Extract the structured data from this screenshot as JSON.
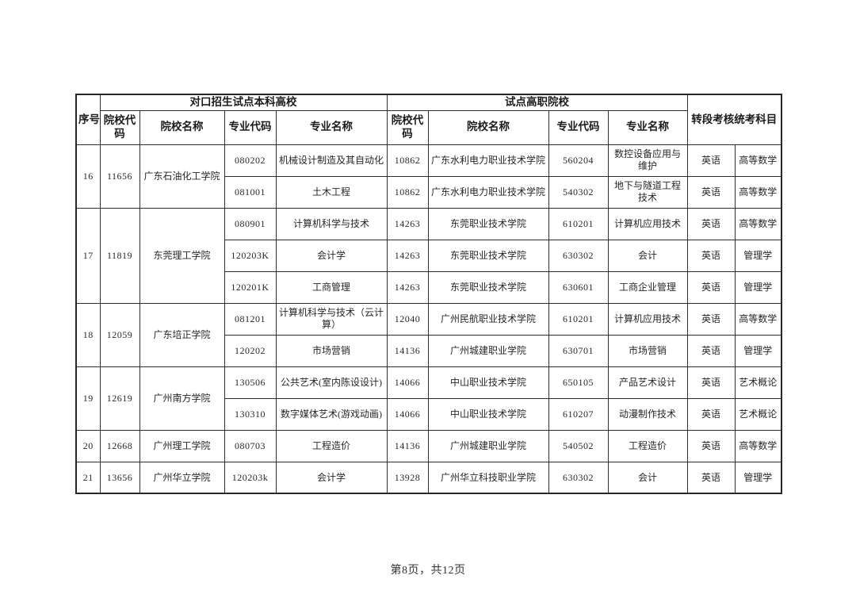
{
  "page": {
    "footer": "第8页，共12页"
  },
  "table": {
    "headers": {
      "seq": "序号",
      "bachelor_group": "对口招生试点本科高校",
      "vocational_group": "试点高职院校",
      "exam_group": "转段考核统考科目",
      "college_code": "院校代码",
      "college_name": "院校名称",
      "major_code": "专业代码",
      "major_name": "专业名称",
      "hz_college_code": "院校代码",
      "hz_college_name": "院校名称",
      "hz_major_code": "专业代码",
      "hz_major_name": "专业名称"
    },
    "groups": [
      {
        "seq": "16",
        "college_code": "11656",
        "college_name": "广东石油化工学院",
        "rows": [
          [
            "080202",
            "机械设计制造及其自动化",
            "10862",
            "广东水利电力职业技术学院",
            "560204",
            "数控设备应用与维护",
            "英语",
            "高等数学"
          ],
          [
            "081001",
            "土木工程",
            "10862",
            "广东水利电力职业技术学院",
            "540302",
            "地下与隧道工程技术",
            "英语",
            "高等数学"
          ]
        ]
      },
      {
        "seq": "17",
        "college_code": "11819",
        "college_name": "东莞理工学院",
        "rows": [
          [
            "080901",
            "计算机科学与技术",
            "14263",
            "东莞职业技术学院",
            "610201",
            "计算机应用技术",
            "英语",
            "高等数学"
          ],
          [
            "120203K",
            "会计学",
            "14263",
            "东莞职业技术学院",
            "630302",
            "会计",
            "英语",
            "管理学"
          ],
          [
            "120201K",
            "工商管理",
            "14263",
            "东莞职业技术学院",
            "630601",
            "工商企业管理",
            "英语",
            "管理学"
          ]
        ]
      },
      {
        "seq": "18",
        "college_code": "12059",
        "college_name": "广东培正学院",
        "rows": [
          [
            "081201",
            "计算机科学与技术（云计算）",
            "12040",
            "广州民航职业技术学院",
            "610201",
            "计算机应用技术",
            "英语",
            "高等数学"
          ],
          [
            "120202",
            "市场营销",
            "14136",
            "广州城建职业学院",
            "630701",
            "市场营销",
            "英语",
            "管理学"
          ]
        ]
      },
      {
        "seq": "19",
        "college_code": "12619",
        "college_name": "广州南方学院",
        "rows": [
          [
            "130506",
            "公共艺术(室内陈设设计)",
            "14066",
            "中山职业技术学院",
            "650105",
            "产品艺术设计",
            "英语",
            "艺术概论"
          ],
          [
            "130310",
            "数字媒体艺术(游戏动画)",
            "14066",
            "中山职业技术学院",
            "610207",
            "动漫制作技术",
            "英语",
            "艺术概论"
          ]
        ]
      },
      {
        "seq": "20",
        "college_code": "12668",
        "college_name": "广州理工学院",
        "rows": [
          [
            "080703",
            "工程造价",
            "14136",
            "广州城建职业学院",
            "540502",
            "工程造价",
            "英语",
            "高等数学"
          ]
        ]
      },
      {
        "seq": "21",
        "college_code": "13656",
        "college_name": "广州华立学院",
        "rows": [
          [
            "120203k",
            "会计学",
            "13928",
            "广州华立科技职业学院",
            "630302",
            "会计",
            "英语",
            "管理学"
          ]
        ]
      }
    ]
  }
}
